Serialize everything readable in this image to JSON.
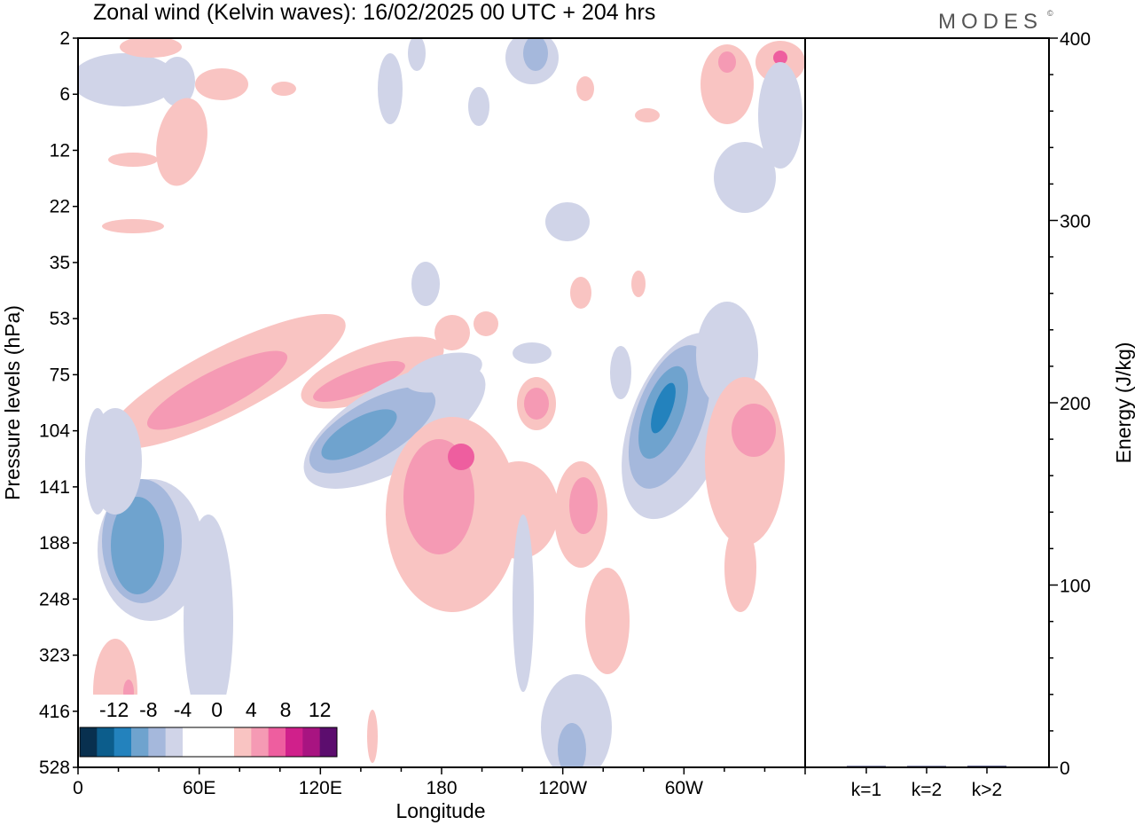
{
  "chart_data": [
    {
      "type": "heatmap",
      "title": "Zonal wind (Kelvin waves):  16/02/2025  00 UTC  + 204 hrs",
      "xlabel": "Longitude",
      "ylabel": "Pressure levels (hPa)",
      "x_ticks": [
        "0",
        "60E",
        "120E",
        "180",
        "120W",
        "60W"
      ],
      "x_tick_degrees": [
        0,
        60,
        120,
        180,
        240,
        300
      ],
      "xlim": [
        0,
        360
      ],
      "y_ticks": [
        "2",
        "6",
        "12",
        "22",
        "35",
        "53",
        "75",
        "104",
        "141",
        "188",
        "248",
        "323",
        "416",
        "528"
      ],
      "y_scale": "log-pressure, top at 2 hPa, bottom at 528 hPa",
      "colorbar": {
        "labels": [
          "-12",
          "-8",
          "-4",
          "0",
          "4",
          "8",
          "12"
        ],
        "bins": [
          {
            "from": -16,
            "to": -14,
            "color": "#08304f"
          },
          {
            "from": -14,
            "to": -12,
            "color": "#0c5d8c"
          },
          {
            "from": -12,
            "to": -10,
            "color": "#2382bd"
          },
          {
            "from": -10,
            "to": -8,
            "color": "#6fa3ce"
          },
          {
            "from": -8,
            "to": -6,
            "color": "#a5b8dc"
          },
          {
            "from": -6,
            "to": -4,
            "color": "#d0d4e8"
          },
          {
            "from": -4,
            "to": -2,
            "color": "#ffffff"
          },
          {
            "from": -2,
            "to": 0,
            "color": "#ffffff"
          },
          {
            "from": 0,
            "to": 2,
            "color": "#ffffff"
          },
          {
            "from": 2,
            "to": 4,
            "color": "#f9c4c2"
          },
          {
            "from": 4,
            "to": 6,
            "color": "#f59ab4"
          },
          {
            "from": 6,
            "to": 8,
            "color": "#ee5e9f"
          },
          {
            "from": 8,
            "to": 10,
            "color": "#d0208b"
          },
          {
            "from": 10,
            "to": 12,
            "color": "#a81481"
          },
          {
            "from": 12,
            "to": 14,
            "color": "#5c0d6e"
          }
        ]
      },
      "features": [
        {
          "sign": "negative",
          "lon": 30,
          "pressure": 180,
          "level": "-10"
        },
        {
          "sign": "negative",
          "lon": 130,
          "pressure": 100,
          "level": "-10"
        },
        {
          "sign": "negative",
          "lon": 285,
          "pressure": 95,
          "level": "-12"
        },
        {
          "sign": "positive",
          "lon": 170,
          "pressure": 140,
          "level": "6"
        },
        {
          "sign": "positive",
          "lon": 105,
          "pressure": 85,
          "level": "6"
        },
        {
          "sign": "positive",
          "lon": 335,
          "pressure": 110,
          "level": "4"
        }
      ]
    },
    {
      "type": "bar",
      "ylabel": "Energy (J/kg)",
      "categories": [
        "k=1",
        "k=2",
        "k>2"
      ],
      "values": [
        0.5,
        0.4,
        0.8
      ],
      "ylim": [
        0,
        400
      ],
      "y_ticks": [
        "0",
        "100",
        "200",
        "300",
        "400"
      ],
      "bar_color": "#1a1f5c"
    }
  ],
  "brand": "MODES",
  "brand_mark": "©"
}
